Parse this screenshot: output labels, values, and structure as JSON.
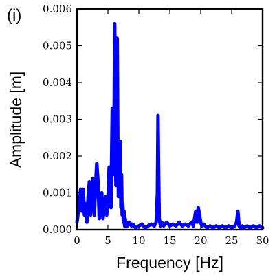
{
  "chart_data": {
    "type": "line",
    "panel_label": "(i)",
    "title": "",
    "xlabel": "Frequency [Hz]",
    "ylabel": "Amplitude [m]",
    "xlim": [
      0,
      30
    ],
    "ylim": [
      0,
      0.006
    ],
    "x_ticks": [
      0,
      5,
      10,
      15,
      20,
      25,
      30
    ],
    "x_tick_labels": [
      "0",
      "5",
      "10",
      "15",
      "20",
      "25",
      "30"
    ],
    "y_ticks": [
      0,
      0.001,
      0.002,
      0.003,
      0.004,
      0.005,
      0.006
    ],
    "y_tick_labels": [
      "0.000",
      "0.001",
      "0.002",
      "0.003",
      "0.004",
      "0.005",
      "0.006"
    ],
    "grid": false,
    "legend": "none",
    "color": "#0000ff",
    "series": [
      {
        "x": [
          0.0,
          0.3,
          0.6,
          0.8,
          1.0,
          1.2,
          1.4,
          1.6,
          1.8,
          2.0,
          2.2,
          2.4,
          2.6,
          2.8,
          3.0,
          3.2,
          3.4,
          3.6,
          3.8,
          4.0,
          4.2,
          4.4,
          4.6,
          4.8,
          5.0,
          5.2,
          5.5,
          5.7,
          5.9,
          6.0,
          6.1,
          6.2,
          6.3,
          6.4,
          6.5,
          6.6,
          6.7,
          6.8,
          6.9,
          7.0,
          7.1,
          7.2,
          7.3,
          7.4,
          7.5,
          7.6,
          7.7,
          7.8,
          7.9,
          8.0,
          8.2,
          8.5,
          8.8,
          9.0,
          9.5,
          10.0,
          10.5,
          11.0,
          11.5,
          12.0,
          12.5,
          12.8,
          13.0,
          13.1,
          13.2,
          13.3,
          13.4,
          13.5,
          13.7,
          14.0,
          14.5,
          15.0,
          15.5,
          16.0,
          16.5,
          17.0,
          17.5,
          18.0,
          18.5,
          18.8,
          19.0,
          19.2,
          19.4,
          19.6,
          19.8,
          20.0,
          20.2,
          20.5,
          21.0,
          21.5,
          22.0,
          22.5,
          23.0,
          23.5,
          24.0,
          24.5,
          25.0,
          25.5,
          25.8,
          26.0,
          26.1,
          26.2,
          26.4,
          26.7,
          27.0,
          27.5,
          28.0,
          28.5,
          29.0,
          29.5,
          30.0
        ],
        "values": [
          0.0002,
          0.0006,
          0.0011,
          0.0005,
          0.0011,
          0.0004,
          0.0007,
          0.0002,
          0.0009,
          0.0013,
          0.0004,
          0.0008,
          0.0014,
          0.0004,
          0.0012,
          0.0018,
          0.0013,
          0.0003,
          0.0006,
          0.001,
          0.0003,
          0.0005,
          0.0009,
          0.0004,
          0.0008,
          0.0017,
          0.0006,
          0.0033,
          0.0015,
          0.003,
          0.0056,
          0.002,
          0.0012,
          0.0045,
          0.0052,
          0.0025,
          0.0009,
          0.002,
          0.0015,
          0.0024,
          0.0006,
          0.0015,
          0.0004,
          0.0007,
          0.0002,
          0.0005,
          0.0001,
          0.0003,
          0.0001,
          0.0002,
          0.0001,
          0.0002,
          0.0001,
          0.00015,
          5e-05,
          0.0001,
          0.00015,
          5e-05,
          0.0001,
          0.00015,
          0.0001,
          0.0002,
          0.001,
          0.0031,
          0.0015,
          0.0003,
          0.0002,
          0.0001,
          0.0002,
          0.0001,
          0.0002,
          0.0001,
          0.00015,
          0.0001,
          0.0002,
          0.0001,
          0.00015,
          0.0001,
          0.0002,
          0.0001,
          0.0003,
          0.0005,
          0.0002,
          0.0006,
          0.0004,
          0.0002,
          0.0001,
          0.00015,
          5e-05,
          0.0001,
          5e-05,
          0.0001,
          5e-05,
          0.0001,
          5e-05,
          0.0001,
          5e-05,
          0.0001,
          0.0002,
          0.0005,
          0.0003,
          0.0001,
          5e-05,
          0.0001,
          5e-05,
          0.0001,
          5e-05,
          0.0001,
          5e-05,
          0.0001,
          5e-05
        ]
      }
    ]
  }
}
